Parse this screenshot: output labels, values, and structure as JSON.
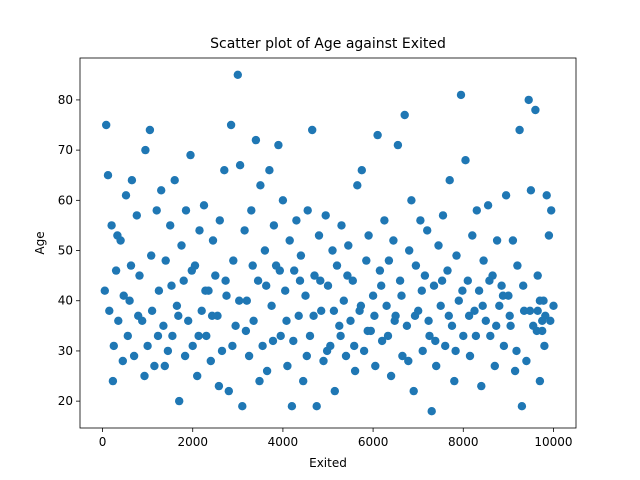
{
  "chart_data": {
    "type": "scatter",
    "title": "Scatter plot of Age against Exited",
    "xlabel": "Exited",
    "ylabel": "Age",
    "xlim": [
      -500,
      10500
    ],
    "ylim": [
      14.65,
      88.35
    ],
    "x_ticks": [
      0,
      2000,
      4000,
      6000,
      8000,
      10000
    ],
    "y_ticks": [
      20,
      30,
      40,
      50,
      60,
      70,
      80
    ],
    "grid": false,
    "legend": "none",
    "marker_color": "#1f77b4",
    "series": [
      {
        "points": [
          [
            50,
            42
          ],
          [
            80,
            75
          ],
          [
            120,
            65
          ],
          [
            150,
            38
          ],
          [
            200,
            55
          ],
          [
            250,
            31
          ],
          [
            300,
            46
          ],
          [
            350,
            36
          ],
          [
            400,
            52
          ],
          [
            450,
            28
          ],
          [
            520,
            61
          ],
          [
            560,
            33
          ],
          [
            600,
            40
          ],
          [
            650,
            64
          ],
          [
            700,
            29
          ],
          [
            760,
            57
          ],
          [
            820,
            45
          ],
          [
            880,
            36
          ],
          [
            950,
            70
          ],
          [
            1000,
            31
          ],
          [
            1050,
            74
          ],
          [
            1100,
            38
          ],
          [
            1150,
            27
          ],
          [
            1200,
            58
          ],
          [
            1250,
            42
          ],
          [
            1300,
            62
          ],
          [
            1350,
            35
          ],
          [
            1400,
            48
          ],
          [
            1450,
            30
          ],
          [
            1500,
            55
          ],
          [
            1550,
            33
          ],
          [
            1600,
            64
          ],
          [
            1650,
            39
          ],
          [
            1700,
            20
          ],
          [
            1750,
            51
          ],
          [
            1800,
            44
          ],
          [
            1850,
            58
          ],
          [
            1900,
            36
          ],
          [
            1950,
            69
          ],
          [
            2000,
            31
          ],
          [
            2050,
            47
          ],
          [
            2100,
            25
          ],
          [
            2150,
            54
          ],
          [
            2200,
            38
          ],
          [
            2250,
            59
          ],
          [
            2300,
            33
          ],
          [
            2350,
            42
          ],
          [
            2400,
            28
          ],
          [
            2450,
            52
          ],
          [
            2500,
            45
          ],
          [
            2550,
            37
          ],
          [
            2600,
            56
          ],
          [
            2650,
            30
          ],
          [
            2700,
            66
          ],
          [
            2750,
            41
          ],
          [
            2800,
            22
          ],
          [
            2850,
            75
          ],
          [
            2900,
            48
          ],
          [
            2950,
            35
          ],
          [
            3000,
            85
          ],
          [
            3050,
            67
          ],
          [
            3100,
            19
          ],
          [
            3150,
            54
          ],
          [
            3200,
            40
          ],
          [
            3250,
            29
          ],
          [
            3300,
            58
          ],
          [
            3350,
            36
          ],
          [
            3400,
            72
          ],
          [
            3450,
            44
          ],
          [
            3500,
            63
          ],
          [
            3550,
            31
          ],
          [
            3600,
            50
          ],
          [
            3650,
            26
          ],
          [
            3700,
            66
          ],
          [
            3750,
            39
          ],
          [
            3800,
            55
          ],
          [
            3850,
            47
          ],
          [
            3900,
            71
          ],
          [
            3950,
            33
          ],
          [
            4000,
            60
          ],
          [
            4050,
            42
          ],
          [
            4100,
            27
          ],
          [
            4150,
            52
          ],
          [
            4200,
            19
          ],
          [
            4250,
            46
          ],
          [
            4300,
            56
          ],
          [
            4350,
            37
          ],
          [
            4400,
            49
          ],
          [
            4450,
            24
          ],
          [
            4500,
            41
          ],
          [
            4550,
            58
          ],
          [
            4600,
            33
          ],
          [
            4650,
            74
          ],
          [
            4700,
            45
          ],
          [
            4750,
            19
          ],
          [
            4800,
            53
          ],
          [
            4850,
            38
          ],
          [
            4900,
            28
          ],
          [
            4950,
            57
          ],
          [
            5000,
            43
          ],
          [
            5050,
            31
          ],
          [
            5100,
            50
          ],
          [
            5150,
            22
          ],
          [
            5200,
            47
          ],
          [
            5250,
            35
          ],
          [
            5300,
            55
          ],
          [
            5350,
            40
          ],
          [
            5400,
            29
          ],
          [
            5450,
            51
          ],
          [
            5500,
            36
          ],
          [
            5550,
            44
          ],
          [
            5600,
            26
          ],
          [
            5650,
            63
          ],
          [
            5700,
            38
          ],
          [
            5750,
            66
          ],
          [
            5800,
            30
          ],
          [
            5850,
            48
          ],
          [
            5900,
            53
          ],
          [
            5950,
            34
          ],
          [
            6000,
            41
          ],
          [
            6050,
            27
          ],
          [
            6100,
            73
          ],
          [
            6150,
            46
          ],
          [
            6200,
            32
          ],
          [
            6250,
            56
          ],
          [
            6300,
            39
          ],
          [
            6350,
            48
          ],
          [
            6400,
            25
          ],
          [
            6450,
            52
          ],
          [
            6500,
            37
          ],
          [
            6550,
            71
          ],
          [
            6600,
            44
          ],
          [
            6650,
            29
          ],
          [
            6700,
            77
          ],
          [
            6750,
            35
          ],
          [
            6800,
            50
          ],
          [
            6850,
            60
          ],
          [
            6900,
            22
          ],
          [
            6950,
            47
          ],
          [
            7000,
            38
          ],
          [
            7050,
            56
          ],
          [
            7100,
            30
          ],
          [
            7150,
            45
          ],
          [
            7200,
            54
          ],
          [
            7250,
            33
          ],
          [
            7300,
            18
          ],
          [
            7350,
            43
          ],
          [
            7400,
            27
          ],
          [
            7450,
            51
          ],
          [
            7500,
            39
          ],
          [
            7550,
            57
          ],
          [
            7600,
            31
          ],
          [
            7650,
            46
          ],
          [
            7700,
            64
          ],
          [
            7750,
            35
          ],
          [
            7800,
            24
          ],
          [
            7850,
            49
          ],
          [
            7900,
            40
          ],
          [
            7950,
            81
          ],
          [
            8000,
            33
          ],
          [
            8050,
            68
          ],
          [
            8100,
            44
          ],
          [
            8150,
            29
          ],
          [
            8200,
            53
          ],
          [
            8250,
            38
          ],
          [
            8300,
            58
          ],
          [
            8350,
            42
          ],
          [
            8400,
            23
          ],
          [
            8450,
            48
          ],
          [
            8500,
            36
          ],
          [
            8550,
            59
          ],
          [
            8600,
            33
          ],
          [
            8650,
            45
          ],
          [
            8700,
            27
          ],
          [
            8750,
            52
          ],
          [
            8800,
            39
          ],
          [
            8850,
            43
          ],
          [
            8900,
            31
          ],
          [
            8950,
            61
          ],
          [
            9000,
            41
          ],
          [
            9050,
            35
          ],
          [
            9100,
            52
          ],
          [
            9150,
            26
          ],
          [
            9200,
            47
          ],
          [
            9250,
            74
          ],
          [
            9300,
            19
          ],
          [
            9350,
            38
          ],
          [
            9400,
            28
          ],
          [
            9450,
            80
          ],
          [
            9500,
            62
          ],
          [
            9550,
            35
          ],
          [
            9600,
            78
          ],
          [
            9650,
            45
          ],
          [
            9700,
            24
          ],
          [
            9750,
            36
          ],
          [
            9800,
            31
          ],
          [
            9850,
            61
          ],
          [
            9900,
            53
          ],
          [
            9950,
            58
          ],
          [
            10000,
            39
          ],
          [
            230,
            24
          ],
          [
            330,
            53
          ],
          [
            470,
            41
          ],
          [
            630,
            47
          ],
          [
            790,
            37
          ],
          [
            930,
            25
          ],
          [
            1080,
            49
          ],
          [
            1230,
            33
          ],
          [
            1380,
            27
          ],
          [
            1530,
            43
          ],
          [
            1680,
            37
          ],
          [
            1830,
            29
          ],
          [
            1980,
            46
          ],
          [
            2130,
            33
          ],
          [
            2280,
            42
          ],
          [
            2430,
            37
          ],
          [
            2580,
            23
          ],
          [
            2730,
            44
          ],
          [
            2880,
            31
          ],
          [
            3030,
            40
          ],
          [
            3180,
            34
          ],
          [
            3330,
            47
          ],
          [
            3480,
            24
          ],
          [
            3630,
            43
          ],
          [
            3780,
            32
          ],
          [
            3930,
            46
          ],
          [
            4080,
            36
          ],
          [
            4230,
            32
          ],
          [
            4380,
            44
          ],
          [
            4530,
            29
          ],
          [
            4680,
            37
          ],
          [
            4830,
            44
          ],
          [
            4980,
            30
          ],
          [
            5130,
            38
          ],
          [
            5280,
            33
          ],
          [
            5430,
            45
          ],
          [
            5580,
            31
          ],
          [
            5730,
            39
          ],
          [
            5880,
            34
          ],
          [
            6030,
            37
          ],
          [
            6180,
            43
          ],
          [
            6330,
            33
          ],
          [
            6480,
            36
          ],
          [
            6630,
            41
          ],
          [
            6780,
            28
          ],
          [
            6930,
            37
          ],
          [
            7080,
            42
          ],
          [
            7230,
            36
          ],
          [
            7380,
            32
          ],
          [
            7530,
            44
          ],
          [
            7680,
            37
          ],
          [
            7830,
            30
          ],
          [
            7980,
            42
          ],
          [
            8130,
            37
          ],
          [
            8280,
            33
          ],
          [
            8430,
            39
          ],
          [
            8580,
            44
          ],
          [
            8730,
            35
          ],
          [
            8880,
            41
          ],
          [
            9030,
            37
          ],
          [
            9180,
            30
          ],
          [
            9330,
            43
          ],
          [
            9480,
            38
          ],
          [
            9630,
            34
          ],
          [
            9780,
            40
          ],
          [
            9930,
            36
          ],
          [
            9650,
            38
          ],
          [
            9700,
            40
          ],
          [
            9750,
            34
          ],
          [
            9820,
            37
          ]
        ]
      }
    ]
  }
}
